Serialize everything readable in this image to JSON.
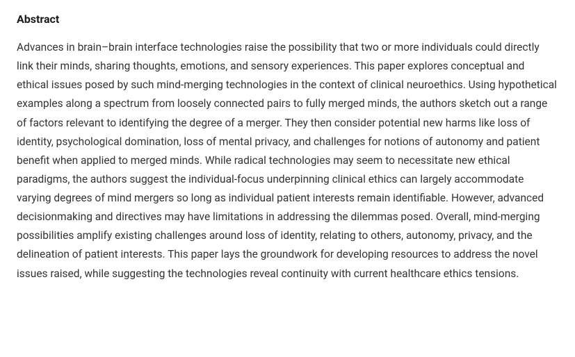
{
  "abstract": {
    "heading": "Abstract",
    "body": "Advances in brain–brain interface technologies raise the possibility that two or more individuals could directly link their minds, sharing thoughts, emotions, and sensory experiences. This paper explores conceptual and ethical issues posed by such mind-merging technologies in the context of clinical neuroethics. Using hypothetical examples along a spectrum from loosely connected pairs to fully merged minds, the authors sketch out a range of factors relevant to identifying the degree of a merger. They then consider potential new harms like loss of identity, psychological domination, loss of mental privacy, and challenges for notions of autonomy and patient benefit when applied to merged minds. While radical technologies may seem to necessitate new ethical paradigms, the authors suggest the individual-focus underpinning clinical ethics can largely accommodate varying degrees of mind mergers so long as individual patient interests remain identifiable. However, advanced decisionmaking and directives may have limitations in addressing the dilemmas posed. Overall, mind-merging possibilities amplify existing challenges around loss of identity, relating to others, autonomy, privacy, and the delineation of patient interests. This paper lays the groundwork for developing resources to address the novel issues raised, while suggesting the technologies reveal continuity with current healthcare ethics tensions."
  },
  "styles": {
    "heading_color": "#1a1a1a",
    "body_color": "#333333",
    "background_color": "#ffffff",
    "heading_fontsize": 16,
    "body_fontsize": 15.5,
    "line_height": 1.75
  }
}
